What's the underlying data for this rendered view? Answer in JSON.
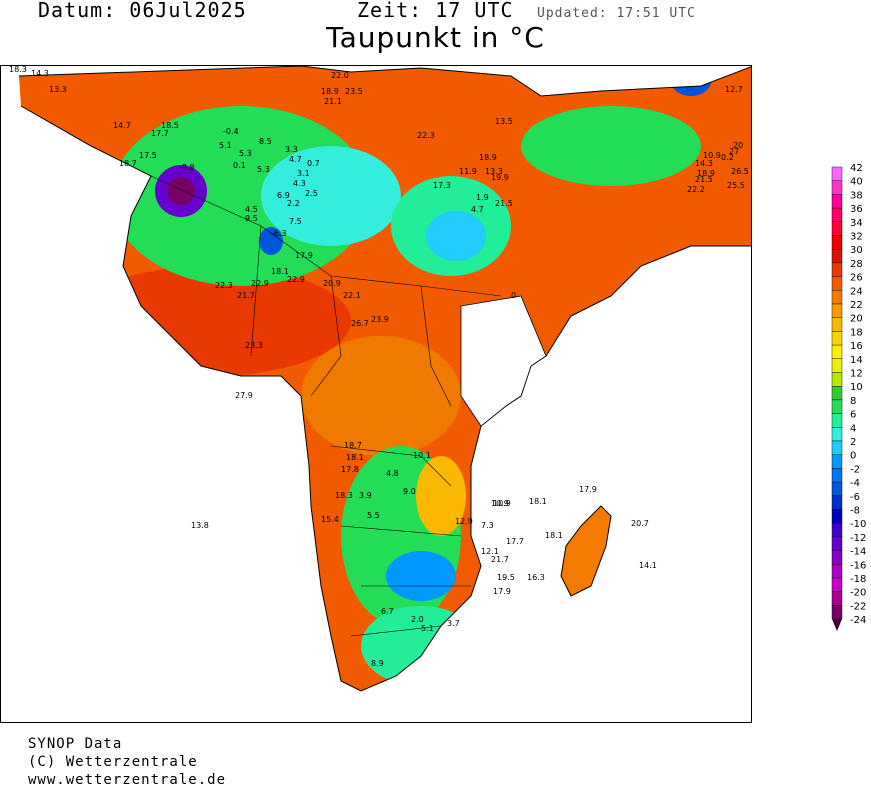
{
  "header": {
    "date_label": "Datum:",
    "date_value": "06Jul2025",
    "time_label": "Zeit:",
    "time_value": "17",
    "time_zone": "UTC",
    "updated": "Updated: 17:51 UTC",
    "title": "Taupunkt in °C"
  },
  "legend": {
    "labels": [
      "42",
      "40",
      "38",
      "36",
      "34",
      "32",
      "30",
      "28",
      "26",
      "24",
      "22",
      "20",
      "18",
      "16",
      "14",
      "12",
      "10",
      "8",
      "6",
      "4",
      "2",
      "0",
      "-2",
      "-4",
      "-6",
      "-8",
      "-10",
      "-12",
      "-14",
      "-16",
      "-18",
      "-20",
      "-22",
      "-24"
    ],
    "colors": [
      "#ff66ff",
      "#ff33cc",
      "#ff0099",
      "#ff0066",
      "#ff0033",
      "#ee0000",
      "#dd1100",
      "#e83a00",
      "#f25a00",
      "#f57a00",
      "#f89a00",
      "#fab800",
      "#fcd200",
      "#ffee00",
      "#e6f000",
      "#b8e600",
      "#33cc33",
      "#22dd55",
      "#22ee99",
      "#33eedd",
      "#22ccff",
      "#0099ff",
      "#0077ee",
      "#0055dd",
      "#0033cc",
      "#0000bb",
      "#4400cc",
      "#6600cc",
      "#8800cc",
      "#aa00cc",
      "#cc00cc",
      "#aa0099",
      "#770066"
    ]
  },
  "stations": [
    {
      "v": "18.3"
    },
    {
      "v": "14.3"
    },
    {
      "v": "13.3"
    },
    {
      "v": "14.7"
    },
    {
      "v": "17.5"
    },
    {
      "v": "18.7"
    },
    {
      "v": "17.7"
    },
    {
      "v": "18.5"
    },
    {
      "v": "-8.8"
    },
    {
      "v": "5.1"
    },
    {
      "v": "-0.4"
    },
    {
      "v": "5.3"
    },
    {
      "v": "8.5"
    },
    {
      "v": "0.1"
    },
    {
      "v": "5.3"
    },
    {
      "v": "3.3"
    },
    {
      "v": "4.7"
    },
    {
      "v": "0.7"
    },
    {
      "v": "3.1"
    },
    {
      "v": "4.3"
    },
    {
      "v": "2.5"
    },
    {
      "v": "6.9"
    },
    {
      "v": "2.2"
    },
    {
      "v": "4.5"
    },
    {
      "v": "9.5"
    },
    {
      "v": "7.5"
    },
    {
      "v": "-6.3"
    },
    {
      "v": "17.9"
    },
    {
      "v": "18.1"
    },
    {
      "v": "22.9"
    },
    {
      "v": "22.3"
    },
    {
      "v": "21.7"
    },
    {
      "v": "22.9"
    },
    {
      "v": "20.9"
    },
    {
      "v": "22.1"
    },
    {
      "v": "23.3"
    },
    {
      "v": "26.7"
    },
    {
      "v": "23.9"
    },
    {
      "v": "27.9"
    },
    {
      "v": "22.0"
    },
    {
      "v": "21.1"
    },
    {
      "v": "18.9"
    },
    {
      "v": "23.5"
    },
    {
      "v": "22.3"
    },
    {
      "v": "13.5"
    },
    {
      "v": "18.9"
    },
    {
      "v": "13.3"
    },
    {
      "v": "11.9"
    },
    {
      "v": "19.9"
    },
    {
      "v": "17.3"
    },
    {
      "v": "1.9"
    },
    {
      "v": "4.7"
    },
    {
      "v": "21.5"
    },
    {
      "v": "0"
    },
    {
      "v": "10.9"
    },
    {
      "v": "10.1"
    },
    {
      "v": "18.7"
    },
    {
      "v": "18.1"
    },
    {
      "v": "17.8"
    },
    {
      "v": "4.8"
    },
    {
      "v": "9.0"
    },
    {
      "v": "18.3"
    },
    {
      "v": "3.9"
    },
    {
      "v": "15.4"
    },
    {
      "v": "5.5"
    },
    {
      "v": "12.9"
    },
    {
      "v": "7.3"
    },
    {
      "v": "10.9"
    },
    {
      "v": "18.1"
    },
    {
      "v": "17.9"
    },
    {
      "v": "13.8"
    },
    {
      "v": "18.1"
    },
    {
      "v": "20.7"
    },
    {
      "v": "12.1"
    },
    {
      "v": "17.7"
    },
    {
      "v": "21.7"
    },
    {
      "v": "16.3"
    },
    {
      "v": "14.1"
    },
    {
      "v": "19.5"
    },
    {
      "v": "17.9"
    },
    {
      "v": "8.9"
    },
    {
      "v": "6.7"
    },
    {
      "v": "2.0"
    },
    {
      "v": "5.1"
    },
    {
      "v": "3.7"
    },
    {
      "v": "10.9"
    },
    {
      "v": "18.9"
    },
    {
      "v": "27"
    },
    {
      "v": "20"
    },
    {
      "v": "21.5"
    },
    {
      "v": "22.2"
    },
    {
      "v": "26.5"
    },
    {
      "v": "25.5"
    },
    {
      "v": "14.3"
    },
    {
      "v": "12.7"
    },
    {
      "v": "0.2"
    }
  ],
  "footer": {
    "line1": "SYNOP Data",
    "line2": "(C) Wetterzentrale",
    "line3": "www.wetterzentrale.de"
  }
}
